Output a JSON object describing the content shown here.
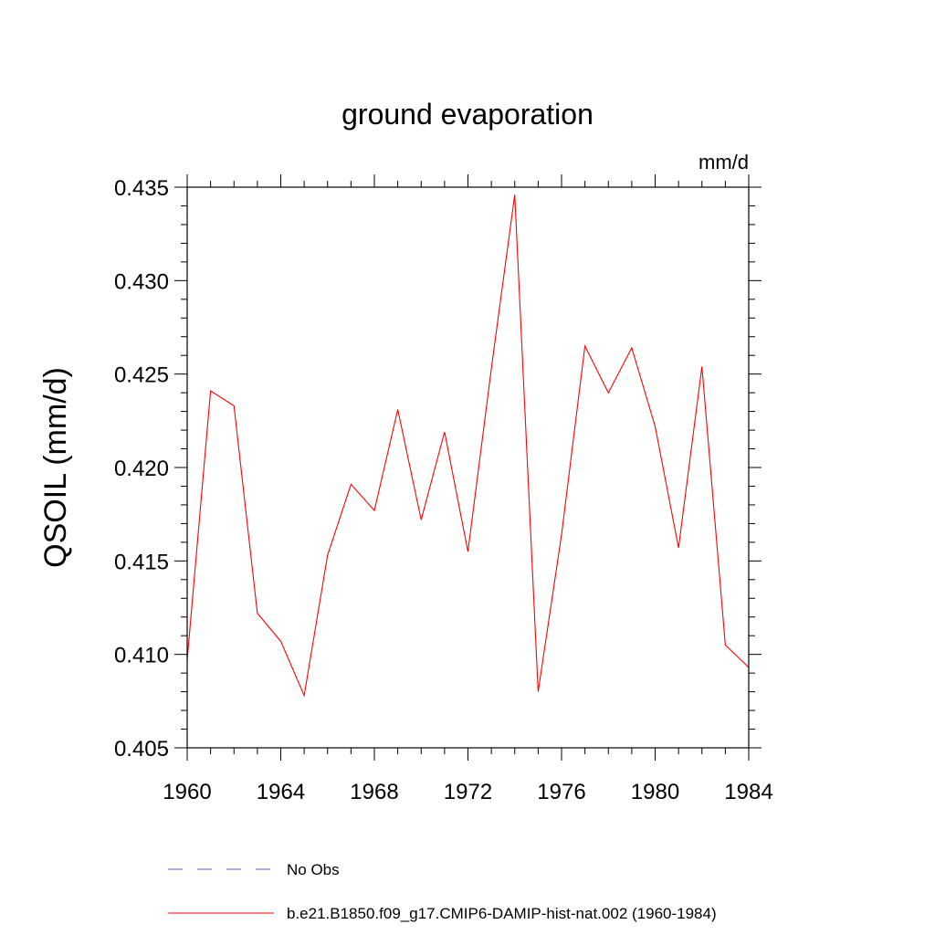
{
  "chart_data": {
    "type": "line",
    "title": "ground evaporation",
    "units_label": "mm/d",
    "ylabel": "QSOIL  (mm/d)",
    "xlabel": "",
    "xlim": [
      1960,
      1984
    ],
    "ylim": [
      0.405,
      0.435
    ],
    "x_ticks": [
      1960,
      1964,
      1968,
      1972,
      1976,
      1980,
      1984
    ],
    "x_tick_labels": [
      "1960",
      "1964",
      "1968",
      "1972",
      "1976",
      "1980",
      "1984"
    ],
    "y_ticks": [
      0.405,
      0.41,
      0.415,
      0.42,
      0.425,
      0.43,
      0.435
    ],
    "y_tick_labels": [
      "0.405",
      "0.410",
      "0.415",
      "0.420",
      "0.425",
      "0.430",
      "0.435"
    ],
    "grid": false,
    "legend_position": "bottom",
    "series": [
      {
        "name": "b.e21.B1850.f09_g17.CMIP6-DAMIP-hist-nat.002 (1960-1984)",
        "color": "#ff0000",
        "style": "solid",
        "x": [
          1960,
          1961,
          1962,
          1963,
          1964,
          1965,
          1966,
          1967,
          1968,
          1969,
          1970,
          1971,
          1972,
          1973,
          1974,
          1975,
          1976,
          1977,
          1978,
          1979,
          1980,
          1981,
          1982,
          1983,
          1984
        ],
        "values": [
          0.4097,
          0.4241,
          0.4233,
          0.4122,
          0.4107,
          0.4078,
          0.4153,
          0.4191,
          0.4177,
          0.4231,
          0.4172,
          0.4219,
          0.4155,
          0.4253,
          0.4346,
          0.408,
          0.4164,
          0.4265,
          0.424,
          0.4264,
          0.4222,
          0.4157,
          0.4254,
          0.4105,
          0.4093
        ]
      }
    ],
    "legend": [
      {
        "label": "No Obs",
        "color": "#6a5acd",
        "style": "dashed"
      },
      {
        "label": "b.e21.B1850.f09_g17.CMIP6-DAMIP-hist-nat.002 (1960-1984)",
        "color": "#ff0000",
        "style": "solid"
      }
    ]
  }
}
